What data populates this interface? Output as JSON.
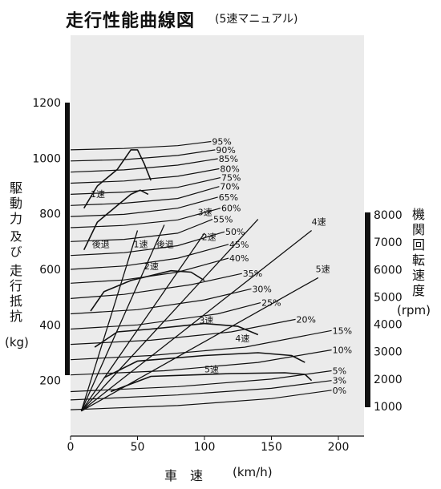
{
  "title": "走行性能曲線図",
  "subtitle": "(5速マニュアル)",
  "y_left_label": {
    "line1": "駆動力",
    "line2": "及び",
    "line3": "走行抵抗",
    "unit": "(kg)"
  },
  "y_right_label": {
    "text": "機関回転速度",
    "unit": "(rpm)"
  },
  "x_label": {
    "text": "車　速",
    "unit": "(km/h)"
  },
  "chart_data": {
    "type": "line",
    "title": "走行性能曲線図",
    "xlabel": "車速 (km/h)",
    "ylabel": "駆動力及び走行抵抗 (kg)",
    "y2label": "機関回転速度 (rpm)",
    "xlim": [
      0,
      220
    ],
    "ylim": [
      0,
      1250
    ],
    "y2lim": [
      1000,
      8000
    ],
    "x_ticks": [
      "0",
      "50",
      "100",
      "150",
      "200"
    ],
    "y_ticks": [
      "200",
      "400",
      "600",
      "800",
      "1000",
      "1200"
    ],
    "y2_ticks": [
      "1000",
      "2000",
      "3000",
      "4000",
      "5000",
      "6000",
      "7000",
      "8000"
    ],
    "resistance_curves": [
      {
        "name": "95%",
        "points": [
          [
            0,
            1030
          ],
          [
            40,
            1035
          ],
          [
            80,
            1045
          ],
          [
            105,
            1060
          ]
        ]
      },
      {
        "name": "90%",
        "points": [
          [
            0,
            990
          ],
          [
            40,
            995
          ],
          [
            80,
            1010
          ],
          [
            108,
            1030
          ]
        ]
      },
      {
        "name": "85%",
        "points": [
          [
            0,
            950
          ],
          [
            40,
            958
          ],
          [
            80,
            975
          ],
          [
            110,
            998
          ]
        ]
      },
      {
        "name": "80%",
        "points": [
          [
            0,
            910
          ],
          [
            40,
            918
          ],
          [
            80,
            935
          ],
          [
            111,
            962
          ]
        ]
      },
      {
        "name": "75%",
        "points": [
          [
            0,
            870
          ],
          [
            40,
            878
          ],
          [
            80,
            895
          ],
          [
            112,
            930
          ]
        ]
      },
      {
        "name": "70%",
        "points": [
          [
            0,
            830
          ],
          [
            40,
            838
          ],
          [
            80,
            855
          ],
          [
            111,
            898
          ]
        ]
      },
      {
        "name": "65%",
        "points": [
          [
            0,
            790
          ],
          [
            40,
            798
          ],
          [
            80,
            820
          ],
          [
            110,
            860
          ]
        ]
      },
      {
        "name": "60%",
        "points": [
          [
            0,
            750
          ],
          [
            40,
            758
          ],
          [
            80,
            778
          ],
          [
            112,
            820
          ]
        ]
      },
      {
        "name": "55%",
        "points": [
          [
            0,
            700
          ],
          [
            40,
            708
          ],
          [
            80,
            730
          ],
          [
            106,
            780
          ]
        ]
      },
      {
        "name": "50%",
        "points": [
          [
            0,
            650
          ],
          [
            40,
            660
          ],
          [
            80,
            685
          ],
          [
            115,
            735
          ]
        ]
      },
      {
        "name": "45%",
        "points": [
          [
            0,
            600
          ],
          [
            40,
            612
          ],
          [
            80,
            640
          ],
          [
            118,
            690
          ]
        ]
      },
      {
        "name": "40%",
        "points": [
          [
            0,
            550
          ],
          [
            40,
            562
          ],
          [
            80,
            590
          ],
          [
            118,
            640
          ]
        ]
      },
      {
        "name": "35%",
        "points": [
          [
            0,
            495
          ],
          [
            40,
            510
          ],
          [
            90,
            545
          ],
          [
            128,
            585
          ]
        ]
      },
      {
        "name": "30%",
        "points": [
          [
            0,
            440
          ],
          [
            50,
            455
          ],
          [
            100,
            490
          ],
          [
            135,
            530
          ]
        ]
      },
      {
        "name": "25%",
        "points": [
          [
            0,
            385
          ],
          [
            50,
            400
          ],
          [
            110,
            440
          ],
          [
            142,
            480
          ]
        ]
      },
      {
        "name": "20%",
        "points": [
          [
            0,
            330
          ],
          [
            60,
            345
          ],
          [
            120,
            375
          ],
          [
            168,
            420
          ]
        ]
      },
      {
        "name": "15%",
        "points": [
          [
            0,
            275
          ],
          [
            60,
            290
          ],
          [
            130,
            320
          ],
          [
            195,
            380
          ]
        ]
      },
      {
        "name": "10%",
        "points": [
          [
            0,
            220
          ],
          [
            70,
            235
          ],
          [
            140,
            265
          ],
          [
            195,
            310
          ]
        ]
      },
      {
        "name": "5%",
        "points": [
          [
            0,
            160
          ],
          [
            80,
            178
          ],
          [
            150,
            205
          ],
          [
            195,
            235
          ]
        ]
      },
      {
        "name": "3%",
        "points": [
          [
            0,
            130
          ],
          [
            80,
            148
          ],
          [
            150,
            172
          ],
          [
            195,
            200
          ]
        ]
      },
      {
        "name": "0%",
        "points": [
          [
            0,
            95
          ],
          [
            80,
            110
          ],
          [
            150,
            135
          ],
          [
            195,
            165
          ]
        ]
      }
    ],
    "rpm_lines": [
      {
        "name": "1速",
        "points": [
          [
            8,
            90
          ],
          [
            50,
            740
          ]
        ]
      },
      {
        "name": "2速",
        "points": [
          [
            8,
            90
          ],
          [
            100,
            730
          ]
        ]
      },
      {
        "name": "3速",
        "points": [
          [
            8,
            90
          ],
          [
            140,
            780
          ]
        ]
      },
      {
        "name": "4速",
        "points": [
          [
            8,
            90
          ],
          [
            180,
            740
          ]
        ]
      },
      {
        "name": "5速",
        "points": [
          [
            8,
            90
          ],
          [
            185,
            570
          ]
        ]
      },
      {
        "name": "後退",
        "points": [
          [
            8,
            90
          ],
          [
            70,
            760
          ]
        ]
      }
    ],
    "driving_force_curves": [
      {
        "name": "1速",
        "points": [
          [
            10,
            820
          ],
          [
            20,
            900
          ],
          [
            35,
            960
          ],
          [
            45,
            1030
          ],
          [
            50,
            1030
          ],
          [
            55,
            980
          ],
          [
            60,
            920
          ]
        ]
      },
      {
        "name": "後退",
        "points": [
          [
            10,
            670
          ],
          [
            20,
            770
          ],
          [
            35,
            830
          ],
          [
            45,
            870
          ],
          [
            52,
            885
          ],
          [
            58,
            870
          ]
        ]
      },
      {
        "name": "2速",
        "points": [
          [
            15,
            450
          ],
          [
            25,
            520
          ],
          [
            45,
            560
          ],
          [
            75,
            595
          ],
          [
            90,
            590
          ],
          [
            100,
            560
          ]
        ]
      },
      {
        "name": "3速",
        "points": [
          [
            18,
            320
          ],
          [
            35,
            375
          ],
          [
            60,
            385
          ],
          [
            100,
            405
          ],
          [
            125,
            395
          ],
          [
            140,
            365
          ]
        ]
      },
      {
        "name": "4速",
        "points": [
          [
            25,
            210
          ],
          [
            50,
            270
          ],
          [
            100,
            290
          ],
          [
            140,
            300
          ],
          [
            165,
            290
          ],
          [
            175,
            265
          ]
        ]
      },
      {
        "name": "5速",
        "points": [
          [
            30,
            160
          ],
          [
            60,
            215
          ],
          [
            120,
            225
          ],
          [
            160,
            228
          ],
          [
            175,
            222
          ],
          [
            180,
            200
          ]
        ]
      }
    ],
    "gear_labels": [
      "1速",
      "後退",
      "1速",
      "後退",
      "2速",
      "2速",
      "3速",
      "3速",
      "4速",
      "4速",
      "5速",
      "5速"
    ],
    "percent_labels": [
      "95%",
      "90%",
      "85%",
      "80%",
      "75%",
      "70%",
      "65%",
      "60%",
      "55%",
      "50%",
      "45%",
      "40%",
      "35%",
      "30%",
      "25%",
      "20%",
      "15%",
      "10%",
      "5%",
      "3%",
      "0%"
    ]
  }
}
